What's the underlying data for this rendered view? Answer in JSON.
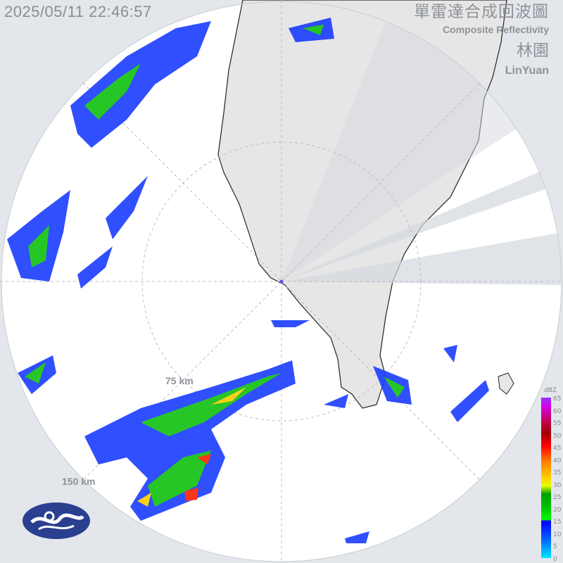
{
  "header": {
    "timestamp": "2025/05/11 22:46:57",
    "title_zh": "單雷達合成回波圖",
    "title_en": "Composite Reflectivity",
    "station_zh": "林園",
    "station_en": "LinYuan"
  },
  "range_labels": {
    "inner": "75 km",
    "outer": "150 km"
  },
  "legend": {
    "unit": "dBZ",
    "ticks": [
      "65",
      "60",
      "55",
      "50",
      "45",
      "40",
      "35",
      "30",
      "25",
      "20",
      "15",
      "10",
      "5",
      "0"
    ]
  },
  "colors": {
    "background": "#e3e7ec",
    "radar_area": "#ffffff",
    "land": "#e6e6e6",
    "blocked_beam": "#d3d8de"
  },
  "logo": {
    "icon": "cwa-logo"
  }
}
